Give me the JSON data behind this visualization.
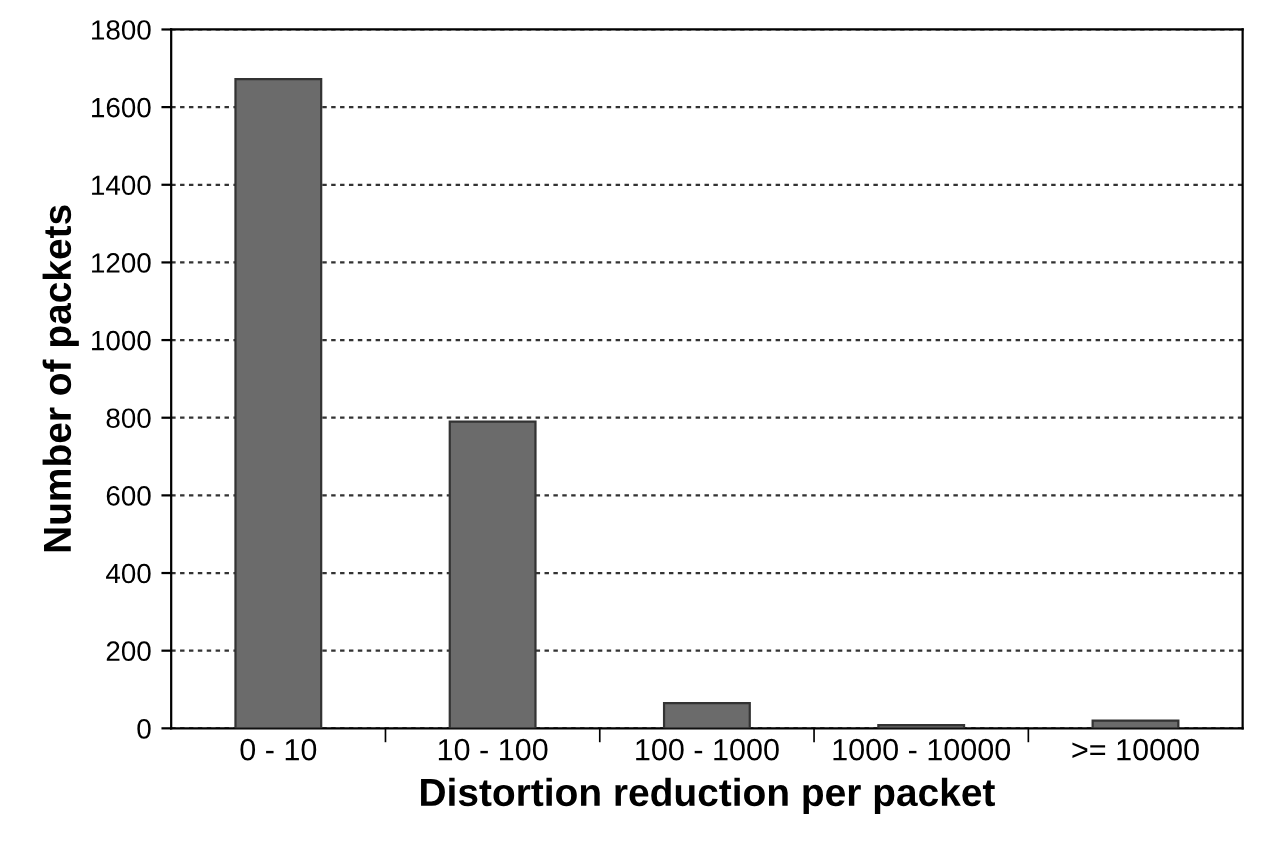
{
  "chart_data": {
    "type": "bar",
    "xlabel": "Distortion reduction per packet",
    "ylabel": "Number of packets",
    "categories": [
      "0 - 10",
      "10 - 100",
      "100 - 1000",
      "1000 - 10000",
      ">= 10000"
    ],
    "values": [
      1672,
      790,
      65,
      8,
      20
    ],
    "color": "#6b6b6b",
    "ylim": [
      0,
      1800
    ],
    "yticks": [
      0,
      200,
      400,
      600,
      800,
      1000,
      1200,
      1400,
      1600,
      1800
    ],
    "grid": "y",
    "legend": false
  }
}
